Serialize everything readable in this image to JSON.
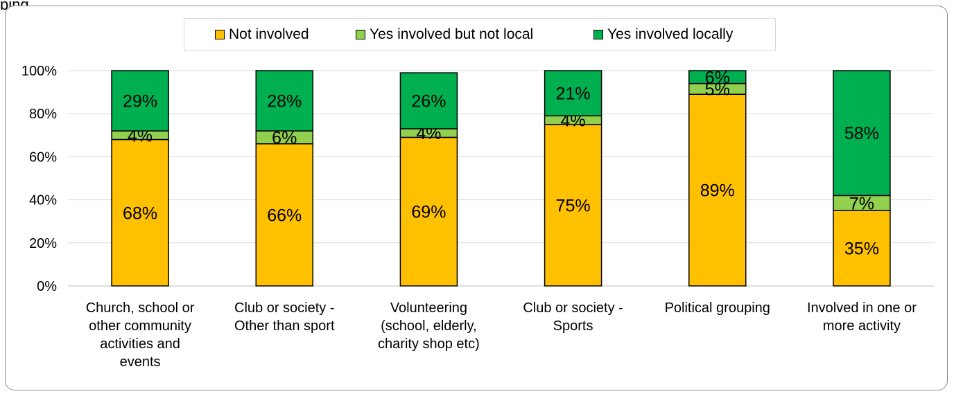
{
  "top_fragment": "ping",
  "colors": {
    "not_involved": "#FFC000",
    "not_local": "#92D050",
    "locally": "#00B050",
    "grid": "#d9d9d9"
  },
  "chart_data": {
    "type": "bar",
    "stacked": true,
    "categories": [
      [
        "Church, school or",
        "other community",
        "activities and",
        "events"
      ],
      [
        "Club or society -",
        "Other than sport"
      ],
      [
        "Volunteering",
        "(school, elderly,",
        "charity shop etc)"
      ],
      [
        "Club or society -",
        "Sports"
      ],
      [
        "Political grouping"
      ],
      [
        "Involved in one or",
        "more activity"
      ]
    ],
    "series": [
      {
        "name": "Not involved",
        "color": "#FFC000",
        "values": [
          68,
          66,
          69,
          75,
          89,
          35
        ],
        "labels": [
          "68%",
          "66%",
          "69%",
          "75%",
          "89%",
          "35%"
        ]
      },
      {
        "name": "Yes involved but not local",
        "color": "#92D050",
        "values": [
          4,
          6,
          4,
          4,
          5,
          7
        ],
        "labels": [
          "4%",
          "6%",
          "4%",
          "4%",
          "5%",
          "7%"
        ]
      },
      {
        "name": "Yes involved locally",
        "color": "#00B050",
        "values": [
          29,
          28,
          26,
          21,
          6,
          58
        ],
        "labels": [
          "29%",
          "28%",
          "26%",
          "21%",
          "6%",
          "58%"
        ]
      }
    ],
    "y_ticks": [
      "0%",
      "20%",
      "40%",
      "60%",
      "80%",
      "100%"
    ],
    "ylim": [
      0,
      100
    ],
    "grid": true,
    "legend_position": "top"
  }
}
